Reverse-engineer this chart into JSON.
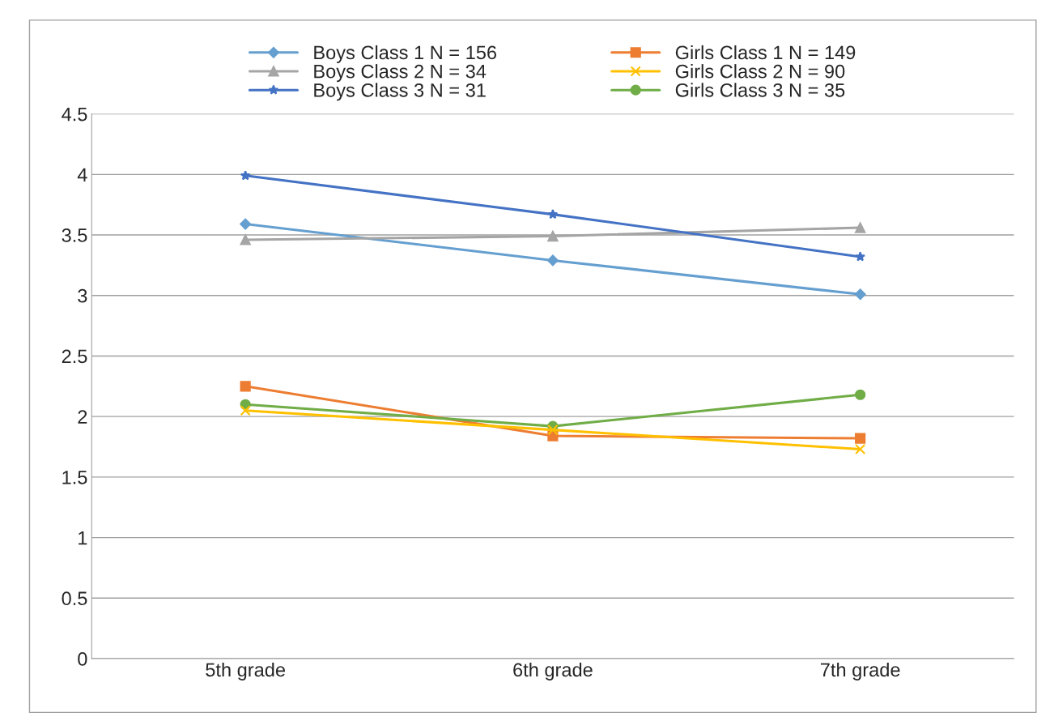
{
  "chart_data": {
    "type": "line",
    "categories": [
      "5th grade",
      "6th grade",
      "7th grade"
    ],
    "series": [
      {
        "name": "Boys Class 1 N = 156",
        "color": "#659fd0",
        "marker": "diamond",
        "values": [
          3.59,
          3.29,
          3.01
        ]
      },
      {
        "name": "Boys Class 2 N = 34",
        "color": "#a5a5a5",
        "marker": "triangle",
        "values": [
          3.46,
          3.49,
          3.56
        ]
      },
      {
        "name": "Boys Class 3 N = 31",
        "color": "#4472c4",
        "marker": "star",
        "values": [
          3.99,
          3.67,
          3.32
        ]
      },
      {
        "name": "Girls Class 1 N = 149",
        "color": "#ed7d31",
        "marker": "square",
        "values": [
          2.25,
          1.84,
          1.82
        ]
      },
      {
        "name": "Girls Class 2 N = 90",
        "color": "#ffc000",
        "marker": "cross",
        "values": [
          2.05,
          1.89,
          1.73
        ]
      },
      {
        "name": "Girls Class 3 N = 35",
        "color": "#70ad47",
        "marker": "circle",
        "values": [
          2.1,
          1.92,
          2.18
        ]
      }
    ],
    "ylim": [
      0,
      4.5
    ],
    "yticks": [
      0,
      0.5,
      1,
      1.5,
      2,
      2.5,
      3,
      3.5,
      4,
      4.5
    ],
    "grid": "y",
    "legend": "top",
    "line_style": "solid"
  }
}
